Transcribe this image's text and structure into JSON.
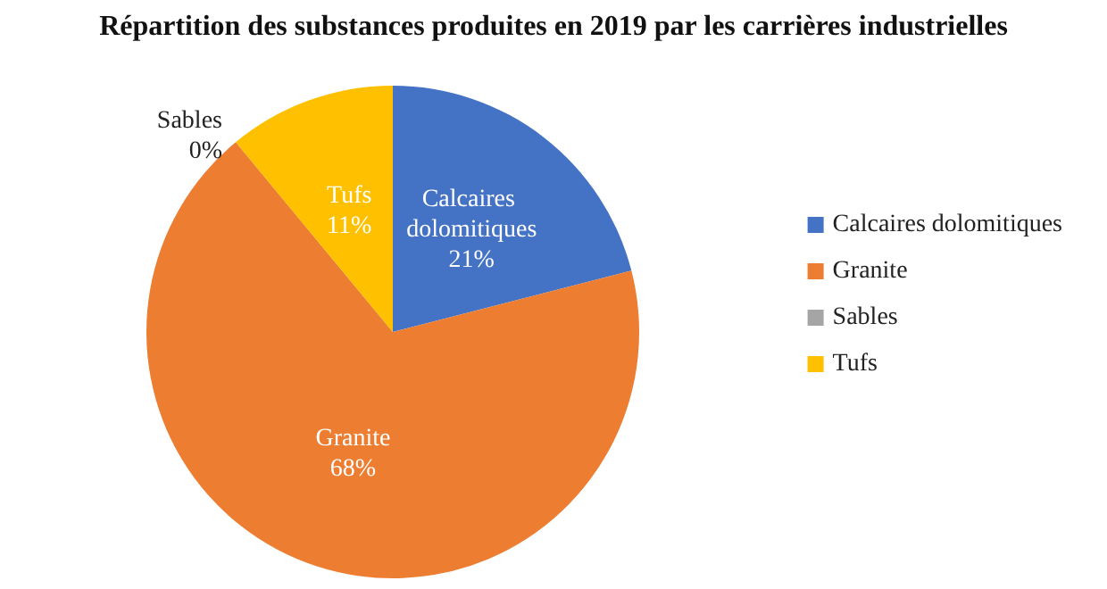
{
  "chart_data": {
    "type": "pie",
    "title": "Répartition des substances produites en 2019 par les carrières industrielles",
    "categories": [
      "Calcaires dolomitiques",
      "Granite",
      "Sables",
      "Tufs"
    ],
    "values": [
      21,
      68,
      0,
      11
    ],
    "value_labels": [
      "21%",
      "68%",
      "0%",
      "11%"
    ],
    "colors": [
      "#4472c4",
      "#ed7d31",
      "#a5a5a5",
      "#ffc000"
    ],
    "legend": "right"
  }
}
